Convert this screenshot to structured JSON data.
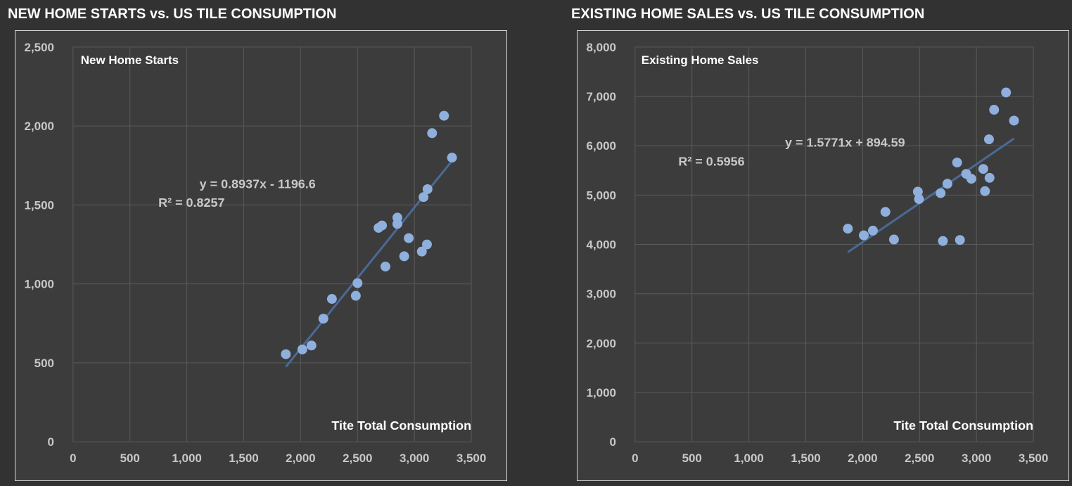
{
  "colors": {
    "background": "#323232",
    "plot_background": "#3c3c3c",
    "grid": "#5a5a5a",
    "tick_text": "#c8c8c8",
    "marker": "#8fb0dd",
    "trendline": "#4a6a96",
    "title_text": "#ffffff"
  },
  "charts": [
    {
      "title": "NEW HOME STARTS vs. US TILE CONSUMPTION",
      "series_label": "New Home Starts",
      "x_axis_label": "Tite Total Consumption",
      "equation": "y = 0.8937x - 1196.6",
      "r_squared": "R² = 0.8257",
      "x_tick_labels": [
        "0",
        "500",
        "1,000",
        "1,500",
        "2,000",
        "2,500",
        "3,000",
        "3,500"
      ],
      "y_tick_labels": [
        "0",
        "500",
        "1,000",
        "1,500",
        "2,000",
        "2,500"
      ]
    },
    {
      "title": "EXISTING HOME SALES vs. US TILE CONSUMPTION",
      "series_label": "Existing Home Sales",
      "x_axis_label": "Tite Total Consumption",
      "equation": "y = 1.5771x + 894.59",
      "r_squared": "R² = 0.5956",
      "x_tick_labels": [
        "0",
        "500",
        "1,000",
        "1,500",
        "2,000",
        "2,500",
        "3,000",
        "3,500"
      ],
      "y_tick_labels": [
        "0",
        "1,000",
        "2,000",
        "3,000",
        "4,000",
        "5,000",
        "6,000",
        "7,000",
        "8,000"
      ]
    }
  ],
  "chart_data": [
    {
      "type": "scatter",
      "title": "NEW HOME STARTS vs. US TILE CONSUMPTION",
      "xlabel": "Tite Total Consumption",
      "ylabel": "New Home Starts",
      "xlim": [
        0,
        3500
      ],
      "ylim": [
        0,
        2500
      ],
      "x_ticks": [
        0,
        500,
        1000,
        1500,
        2000,
        2500,
        3000,
        3500
      ],
      "y_ticks": [
        0,
        500,
        1000,
        1500,
        2000,
        2500
      ],
      "grid": true,
      "trendline": {
        "slope": 0.8937,
        "intercept": -1196.6,
        "x_range": [
          1870,
          3330
        ]
      },
      "points": [
        [
          1870,
          555
        ],
        [
          2015,
          585
        ],
        [
          2095,
          610
        ],
        [
          2200,
          780
        ],
        [
          2275,
          905
        ],
        [
          2485,
          925
        ],
        [
          2500,
          1005
        ],
        [
          2685,
          1355
        ],
        [
          2715,
          1370
        ],
        [
          2745,
          1110
        ],
        [
          2850,
          1420
        ],
        [
          2850,
          1380
        ],
        [
          2910,
          1175
        ],
        [
          2950,
          1290
        ],
        [
          3065,
          1205
        ],
        [
          3080,
          1550
        ],
        [
          3110,
          1250
        ],
        [
          3115,
          1600
        ],
        [
          3155,
          1955
        ],
        [
          3260,
          2065
        ],
        [
          3330,
          1800
        ]
      ]
    },
    {
      "type": "scatter",
      "title": "EXISTING HOME SALES vs. US TILE CONSUMPTION",
      "xlabel": "Tite Total Consumption",
      "ylabel": "Existing Home Sales",
      "xlim": [
        0,
        3500
      ],
      "ylim": [
        0,
        8000
      ],
      "x_ticks": [
        0,
        500,
        1000,
        1500,
        2000,
        2500,
        3000,
        3500
      ],
      "y_ticks": [
        0,
        1000,
        2000,
        3000,
        4000,
        5000,
        6000,
        7000,
        8000
      ],
      "grid": true,
      "trendline": {
        "slope": 1.5771,
        "intercept": 894.59,
        "x_range": [
          1870,
          3330
        ]
      },
      "points": [
        [
          1870,
          4320
        ],
        [
          2010,
          4185
        ],
        [
          2090,
          4280
        ],
        [
          2200,
          4660
        ],
        [
          2275,
          4100
        ],
        [
          2485,
          5070
        ],
        [
          2495,
          4920
        ],
        [
          2685,
          5040
        ],
        [
          2705,
          4070
        ],
        [
          2745,
          5230
        ],
        [
          2830,
          5660
        ],
        [
          2855,
          4090
        ],
        [
          2910,
          5430
        ],
        [
          2955,
          5330
        ],
        [
          3060,
          5530
        ],
        [
          3075,
          5080
        ],
        [
          3110,
          6130
        ],
        [
          3115,
          5350
        ],
        [
          3155,
          6730
        ],
        [
          3260,
          7080
        ],
        [
          3330,
          6510
        ]
      ]
    }
  ]
}
